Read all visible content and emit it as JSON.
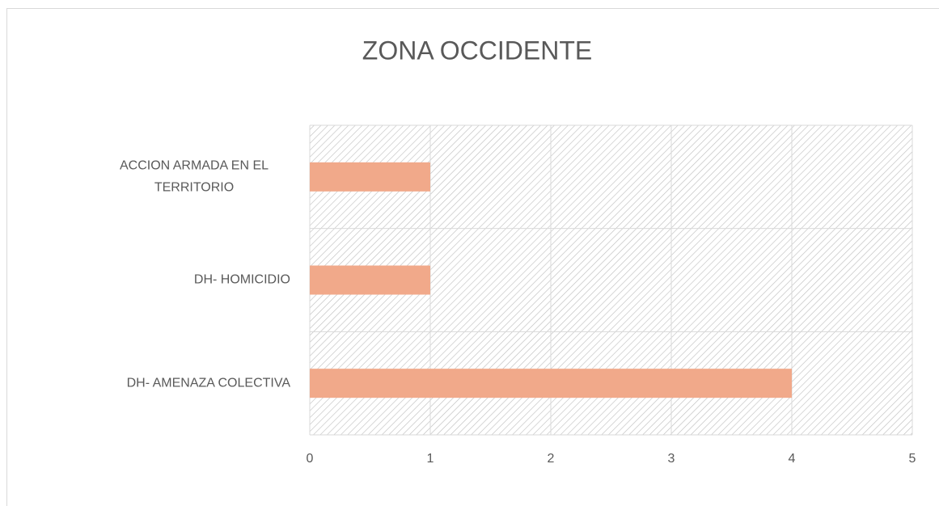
{
  "chart_data": {
    "type": "bar",
    "orientation": "horizontal",
    "title": "ZONA OCCIDENTE",
    "categories": [
      "ACCION ARMADA EN EL TERRITORIO",
      "DH- HOMICIDIO",
      "DH- AMENAZA COLECTIVA"
    ],
    "values": [
      1,
      1,
      4
    ],
    "color": "#f1a98a",
    "xlim": [
      0,
      5
    ],
    "xticks": [
      0,
      1,
      2,
      3,
      4,
      5
    ],
    "grid": true
  }
}
